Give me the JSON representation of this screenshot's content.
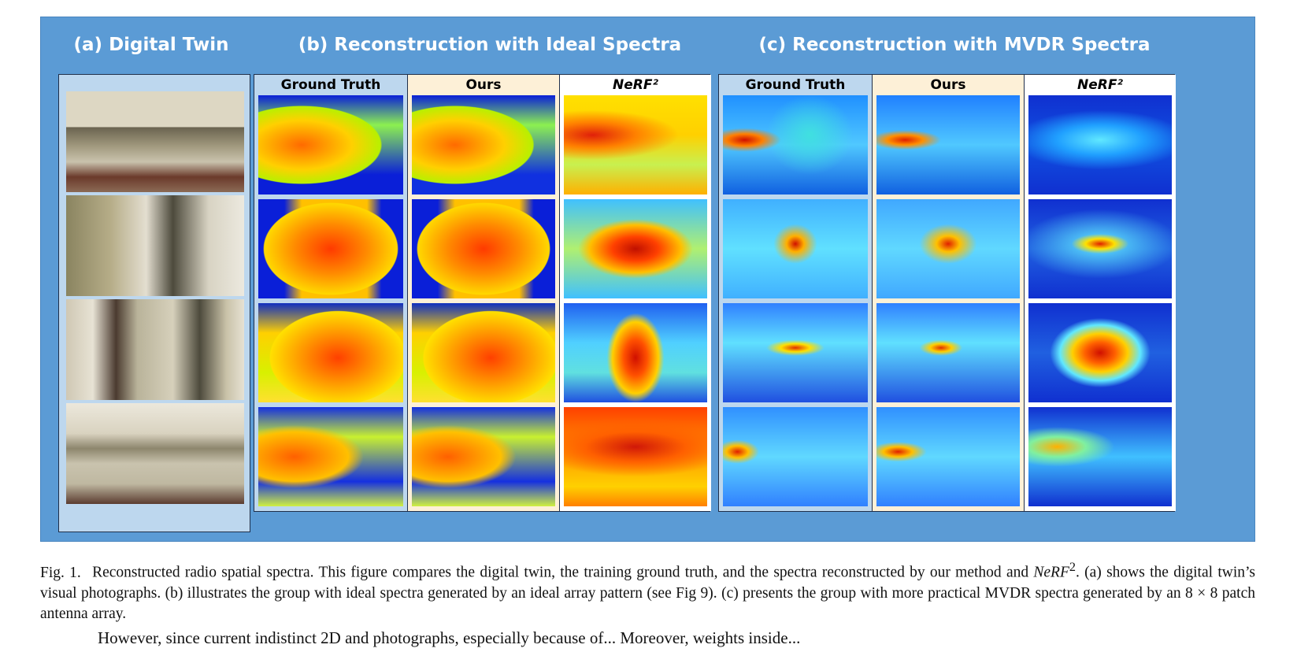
{
  "figure": {
    "sections": {
      "a": "(a) Digital Twin",
      "b": "(b) Reconstruction with Ideal Spectra",
      "c": "(c) Reconstruction with MVDR Spectra"
    },
    "columns": {
      "gt": "Ground Truth",
      "ours": "Ours",
      "nerf": "NeRF²"
    }
  },
  "caption": {
    "label": "Fig. 1.",
    "part1": "Reconstructed radio spatial spectra. This figure compares the digital twin, the training ground truth, and the spectra reconstructed by our method and",
    "nerf": "NeRF",
    "sup": "2",
    "part2": ". (a) shows the digital twin’s visual photographs. (b) illustrates the group with ideal spectra generated by an ideal array pattern (see Fig 9). (c) presents the group with more practical MVDR spectra generated by an 8 × 8 patch antenna array."
  },
  "body_text": "However, since current indistinct 2D and photographs, especially because of... Moreover, weights inside..."
}
